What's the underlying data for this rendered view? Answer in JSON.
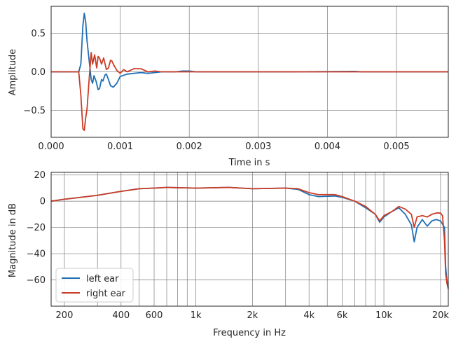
{
  "chart_data": [
    {
      "type": "line",
      "xlabel": "Time in s",
      "ylabel": "Amplitude",
      "xlim": [
        0.0,
        0.00575
      ],
      "ylim": [
        -0.85,
        0.85
      ],
      "xticks": [
        0.0,
        0.001,
        0.002,
        0.003,
        0.004,
        0.005
      ],
      "xtick_labels": [
        "0.000",
        "0.001",
        "0.002",
        "0.003",
        "0.004",
        "0.005"
      ],
      "yticks": [
        0.5,
        0.0,
        -0.5
      ],
      "ytick_labels": [
        "0.5",
        "0.0",
        "−0.5"
      ],
      "grid": true,
      "series": [
        {
          "name": "left ear",
          "color": "#1f6fb4",
          "points": [
            [
              0.0,
              0.0
            ],
            [
              0.0004,
              0.0
            ],
            [
              0.00043,
              0.1
            ],
            [
              0.00046,
              0.6
            ],
            [
              0.00048,
              0.76
            ],
            [
              0.0005,
              0.65
            ],
            [
              0.00052,
              0.4
            ],
            [
              0.00055,
              0.15
            ],
            [
              0.00058,
              -0.1
            ],
            [
              0.0006,
              -0.15
            ],
            [
              0.00062,
              -0.05
            ],
            [
              0.00065,
              -0.12
            ],
            [
              0.00068,
              -0.23
            ],
            [
              0.0007,
              -0.22
            ],
            [
              0.00073,
              -0.1
            ],
            [
              0.00075,
              -0.12
            ],
            [
              0.00078,
              -0.04
            ],
            [
              0.0008,
              -0.03
            ],
            [
              0.00083,
              -0.1
            ],
            [
              0.00086,
              -0.18
            ],
            [
              0.0009,
              -0.2
            ],
            [
              0.00095,
              -0.15
            ],
            [
              0.001,
              -0.06
            ],
            [
              0.0011,
              -0.03
            ],
            [
              0.0012,
              -0.02
            ],
            [
              0.0013,
              -0.01
            ],
            [
              0.0014,
              -0.02
            ],
            [
              0.0015,
              -0.01
            ],
            [
              0.0016,
              0.0
            ],
            [
              0.0018,
              0.0
            ],
            [
              0.0019,
              0.01
            ],
            [
              0.002,
              0.01
            ],
            [
              0.0021,
              0.0
            ],
            [
              0.0025,
              0.0
            ],
            [
              0.0035,
              0.0
            ],
            [
              0.0044,
              0.005
            ],
            [
              0.0045,
              0.0
            ],
            [
              0.00575,
              0.0
            ]
          ]
        },
        {
          "name": "right ear",
          "color": "#cc3d27",
          "points": [
            [
              0.0,
              0.0
            ],
            [
              0.0004,
              0.0
            ],
            [
              0.00043,
              -0.3
            ],
            [
              0.00046,
              -0.74
            ],
            [
              0.00048,
              -0.76
            ],
            [
              0.0005,
              -0.6
            ],
            [
              0.00052,
              -0.48
            ],
            [
              0.00055,
              -0.1
            ],
            [
              0.00058,
              0.25
            ],
            [
              0.0006,
              0.1
            ],
            [
              0.00063,
              0.22
            ],
            [
              0.00066,
              0.05
            ],
            [
              0.00068,
              0.2
            ],
            [
              0.0007,
              0.18
            ],
            [
              0.00073,
              0.1
            ],
            [
              0.00076,
              0.18
            ],
            [
              0.0008,
              0.03
            ],
            [
              0.00083,
              0.05
            ],
            [
              0.00086,
              0.15
            ],
            [
              0.00088,
              0.14
            ],
            [
              0.0009,
              0.1
            ],
            [
              0.00095,
              0.02
            ],
            [
              0.001,
              -0.02
            ],
            [
              0.00105,
              0.03
            ],
            [
              0.0011,
              0.0
            ],
            [
              0.0012,
              0.04
            ],
            [
              0.0013,
              0.04
            ],
            [
              0.0014,
              0.0
            ],
            [
              0.0015,
              0.01
            ],
            [
              0.0016,
              0.0
            ],
            [
              0.0018,
              0.0
            ],
            [
              0.002,
              0.0
            ],
            [
              0.003,
              0.0
            ],
            [
              0.004,
              0.0
            ],
            [
              0.00575,
              0.0
            ]
          ]
        }
      ]
    },
    {
      "type": "line",
      "xlabel": "Frequency in Hz",
      "ylabel": "Magnitude in dB",
      "xscale": "log",
      "xlim": [
        170,
        22000
      ],
      "ylim": [
        -80,
        22
      ],
      "xticks": [
        200,
        400,
        600,
        1000,
        2000,
        4000,
        6000,
        10000,
        20000
      ],
      "xtick_labels": [
        "200",
        "400",
        "600",
        "1k",
        "2k",
        "4k",
        "6k",
        "10k",
        "20k"
      ],
      "minor_xticks": [
        300,
        500,
        700,
        800,
        900,
        3000,
        5000,
        7000,
        8000,
        9000
      ],
      "yticks": [
        20,
        0,
        -20,
        -40,
        -60
      ],
      "ytick_labels": [
        "20",
        "0",
        "−20",
        "−40",
        "−60"
      ],
      "grid": true,
      "legend_position": "lower-left",
      "series": [
        {
          "name": "left ear",
          "color": "#1f6fb4",
          "points": [
            [
              170,
              0
            ],
            [
              200,
              1.5
            ],
            [
              300,
              4.5
            ],
            [
              400,
              7.5
            ],
            [
              500,
              9.5
            ],
            [
              600,
              10
            ],
            [
              700,
              10.5
            ],
            [
              1000,
              10
            ],
            [
              1500,
              10.5
            ],
            [
              2000,
              9.5
            ],
            [
              3000,
              10
            ],
            [
              3500,
              9
            ],
            [
              4000,
              5
            ],
            [
              4500,
              3.5
            ],
            [
              5500,
              4
            ],
            [
              6000,
              3
            ],
            [
              7000,
              0
            ],
            [
              8000,
              -5
            ],
            [
              9000,
              -10
            ],
            [
              9500,
              -16
            ],
            [
              10000,
              -12
            ],
            [
              11000,
              -8
            ],
            [
              12000,
              -5
            ],
            [
              13000,
              -10
            ],
            [
              14000,
              -18
            ],
            [
              14500,
              -31
            ],
            [
              15000,
              -20
            ],
            [
              16000,
              -14
            ],
            [
              17000,
              -19
            ],
            [
              18000,
              -15
            ],
            [
              19000,
              -14
            ],
            [
              20000,
              -15
            ],
            [
              21000,
              -20
            ],
            [
              21300,
              -50
            ],
            [
              21600,
              -60
            ],
            [
              22000,
              -66
            ]
          ]
        },
        {
          "name": "right ear",
          "color": "#cc3d27",
          "points": [
            [
              170,
              0
            ],
            [
              200,
              1.5
            ],
            [
              300,
              4.5
            ],
            [
              400,
              7.5
            ],
            [
              500,
              9.5
            ],
            [
              600,
              10
            ],
            [
              700,
              10.5
            ],
            [
              1000,
              10
            ],
            [
              1500,
              10.5
            ],
            [
              2000,
              9.5
            ],
            [
              3000,
              10
            ],
            [
              3500,
              9.5
            ],
            [
              4000,
              6.5
            ],
            [
              4500,
              5
            ],
            [
              5500,
              5
            ],
            [
              6000,
              3.5
            ],
            [
              7000,
              0
            ],
            [
              8000,
              -4
            ],
            [
              9000,
              -10
            ],
            [
              9500,
              -15
            ],
            [
              10000,
              -11
            ],
            [
              11000,
              -8
            ],
            [
              12000,
              -4
            ],
            [
              13000,
              -6
            ],
            [
              14000,
              -10
            ],
            [
              14500,
              -20
            ],
            [
              15000,
              -12
            ],
            [
              16000,
              -11
            ],
            [
              17000,
              -12
            ],
            [
              18000,
              -10
            ],
            [
              19000,
              -9
            ],
            [
              20000,
              -9
            ],
            [
              20500,
              -11
            ],
            [
              21000,
              -30
            ],
            [
              21300,
              -55
            ],
            [
              21600,
              -62
            ],
            [
              22000,
              -67
            ]
          ]
        }
      ]
    }
  ]
}
